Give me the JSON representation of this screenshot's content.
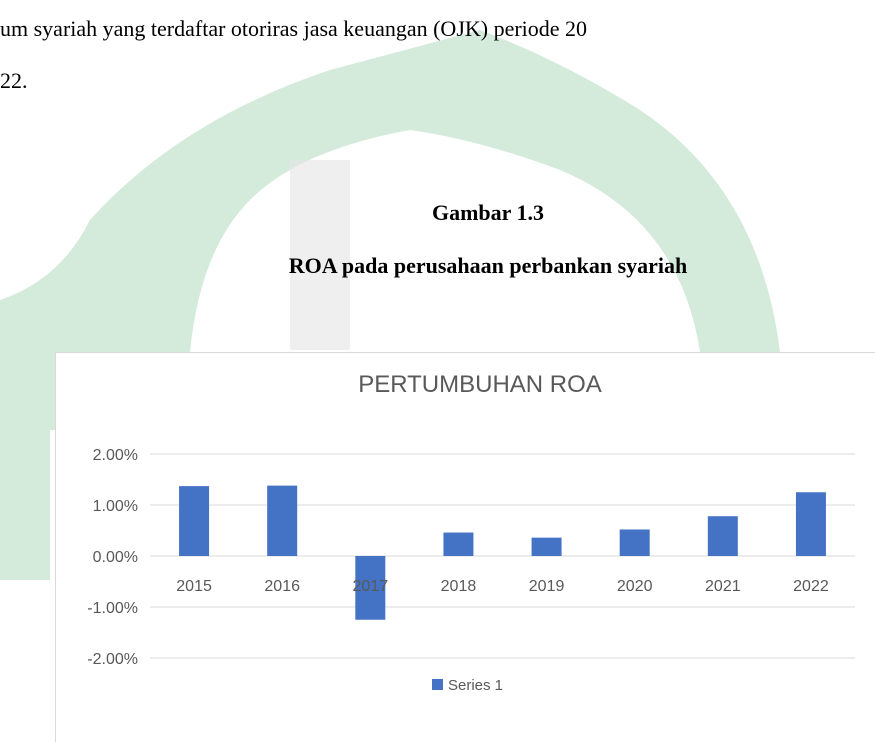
{
  "text": {
    "lines": [
      "um syariah yang terdaftar otoriras jasa keuangan (OJK) periode 20",
      "22."
    ],
    "figure_number": "Gambar 1.3",
    "figure_caption": "ROA pada perusahaan perbankan syariah"
  },
  "chart_data": {
    "type": "bar",
    "title": "PERTUMBUHAN ROA",
    "categories": [
      "2015",
      "2016",
      "2017",
      "2018",
      "2019",
      "2020",
      "2021",
      "2022"
    ],
    "series": [
      {
        "name": "Series 1",
        "color": "#4472c4",
        "values": [
          1.37,
          1.38,
          -1.25,
          0.46,
          0.36,
          0.52,
          0.78,
          1.25
        ]
      }
    ],
    "ylim": [
      -2,
      2
    ],
    "yticks": [
      {
        "value": 2,
        "label": "2.00%"
      },
      {
        "value": 1,
        "label": "1.00%"
      },
      {
        "value": 0,
        "label": "0.00%"
      },
      {
        "value": -1,
        "label": "-1.00%"
      },
      {
        "value": -2,
        "label": "-2.00%"
      }
    ],
    "grid": true,
    "legend": "bottom"
  }
}
